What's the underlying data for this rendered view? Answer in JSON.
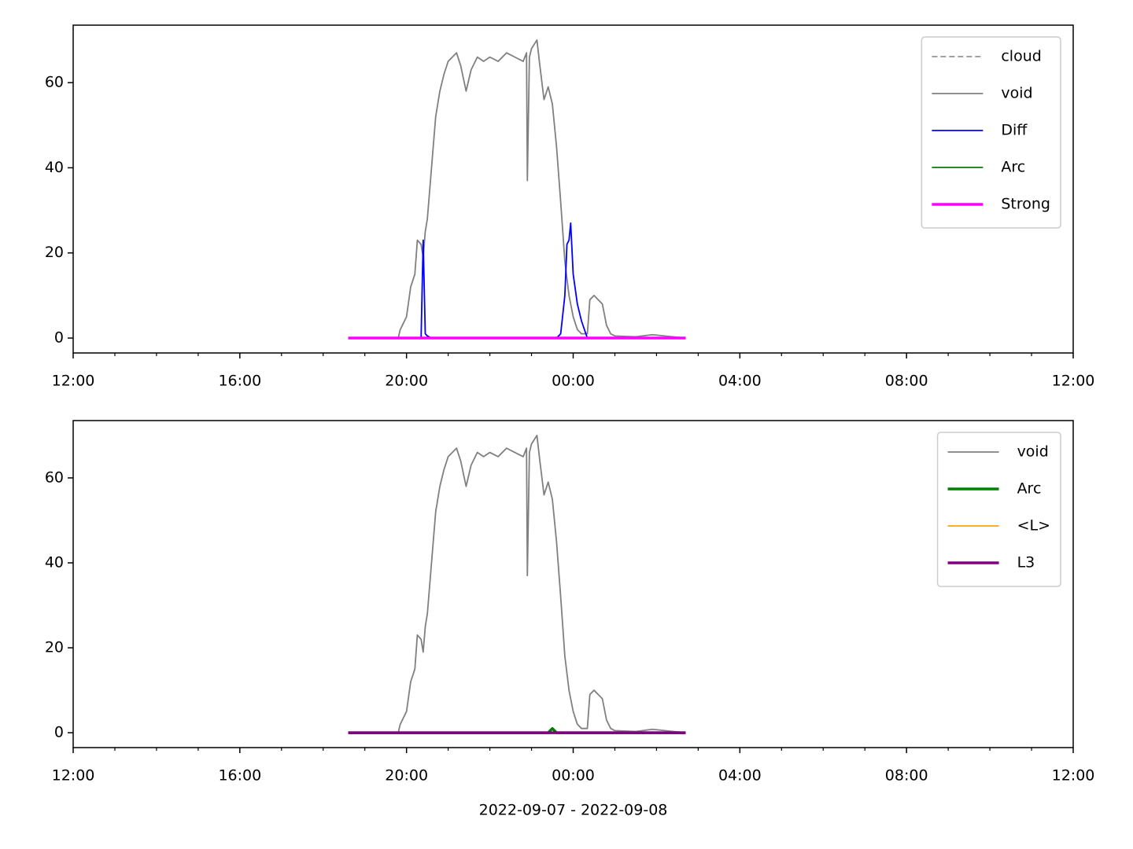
{
  "chart_data": [
    {
      "type": "line",
      "x": [
        18.6,
        19.8,
        19.85,
        19.9,
        20.0,
        20.1,
        20.2,
        20.26,
        20.35,
        20.4,
        20.45,
        20.5,
        20.6,
        20.7,
        20.8,
        20.9,
        21.0,
        21.1,
        21.2,
        21.3,
        21.43,
        21.55,
        21.7,
        21.85,
        22.0,
        22.2,
        22.4,
        22.6,
        22.8,
        22.88,
        22.9,
        22.95,
        23.0,
        23.13,
        23.2,
        23.3,
        23.4,
        23.5,
        23.6,
        23.7,
        23.8,
        23.85,
        23.9,
        23.94,
        24.0,
        24.1,
        24.2,
        24.34,
        24.4,
        24.5,
        24.7,
        24.8,
        24.9,
        25.0,
        25.5,
        25.9,
        26.2,
        26.7
      ],
      "series": [
        {
          "name": "cloud",
          "color": "#808080",
          "dashed": true,
          "linewidth": 1.5,
          "values": [
            0,
            0,
            0,
            0,
            0,
            0,
            0,
            0,
            0,
            0,
            0,
            0,
            0,
            0,
            0,
            0,
            0,
            0,
            0,
            0,
            0,
            0,
            0,
            0,
            0,
            0,
            0,
            0,
            0,
            0,
            0,
            0,
            0,
            0,
            0,
            0,
            0,
            0,
            0,
            0,
            0,
            0,
            0,
            0,
            0,
            0,
            0,
            0,
            0,
            0,
            0,
            0,
            0,
            0,
            0,
            0,
            0,
            0
          ]
        },
        {
          "name": "void",
          "color": "#808080",
          "linewidth": 1.8,
          "values": [
            0,
            0,
            2,
            3,
            5,
            12,
            15,
            23,
            22,
            19,
            25,
            28,
            40,
            52,
            58,
            62,
            65,
            66,
            67,
            64,
            58,
            63,
            66,
            65,
            66,
            65,
            67,
            66,
            65,
            67,
            37,
            66,
            68,
            70,
            64,
            56,
            59,
            55,
            45,
            32,
            18,
            14,
            10,
            8,
            5,
            2,
            1,
            1,
            9,
            10,
            8,
            3,
            1,
            0.5,
            0.3,
            0.8,
            0.5,
            0
          ]
        },
        {
          "name": "Diff",
          "color": "#0000ff",
          "linewidth": 1.8,
          "values": [
            0,
            0,
            0,
            0,
            0,
            0,
            0,
            0,
            0,
            23,
            1,
            0.5,
            0,
            0,
            0,
            0,
            0,
            0,
            0,
            0,
            0,
            0,
            0,
            0,
            0,
            0,
            0,
            0,
            0,
            0,
            0,
            0,
            0,
            0,
            0,
            0,
            0,
            0,
            0,
            1,
            10,
            22,
            23,
            27,
            15,
            8,
            4,
            0,
            0,
            0,
            0,
            0,
            0,
            0,
            0,
            0,
            0,
            0
          ]
        },
        {
          "name": "Arc",
          "color": "#008000",
          "linewidth": 1.8,
          "values": [
            0,
            0,
            0,
            0,
            0,
            0,
            0,
            0,
            0,
            0,
            0,
            0,
            0,
            0,
            0,
            0,
            0,
            0,
            0,
            0,
            0,
            0,
            0,
            0,
            0,
            0,
            0,
            0,
            0,
            0,
            0,
            0,
            0,
            0,
            0,
            0,
            0,
            0,
            0,
            0,
            0,
            0,
            0,
            0,
            0,
            0,
            0,
            0,
            0,
            0,
            0,
            0,
            0,
            0,
            0,
            0,
            0,
            0
          ]
        },
        {
          "name": "Strong",
          "color": "#ff00ff",
          "linewidth": 3.5,
          "values": [
            0,
            0,
            0,
            0,
            0,
            0,
            0,
            0,
            0,
            0,
            0,
            0,
            0,
            0,
            0,
            0,
            0,
            0,
            0,
            0,
            0,
            0,
            0,
            0,
            0,
            0,
            0,
            0,
            0,
            0,
            0,
            0,
            0,
            0,
            0,
            0,
            0,
            0,
            0,
            0,
            0,
            0,
            0,
            0,
            0,
            0,
            0,
            0,
            0,
            0,
            0,
            0,
            0,
            0,
            0,
            0,
            0,
            0
          ]
        }
      ],
      "xlim": [
        12,
        36
      ],
      "xticks": [
        {
          "value": 12,
          "label": "12:00"
        },
        {
          "value": 16,
          "label": "16:00"
        },
        {
          "value": 20,
          "label": "20:00"
        },
        {
          "value": 24,
          "label": "00:00"
        },
        {
          "value": 28,
          "label": "04:00"
        },
        {
          "value": 32,
          "label": "08:00"
        },
        {
          "value": 36,
          "label": "12:00"
        }
      ],
      "xminorticks": [
        13,
        14,
        15,
        17,
        18,
        19,
        21,
        22,
        23,
        25,
        26,
        27,
        29,
        30,
        31,
        33,
        34,
        35
      ],
      "ylim": [
        -3.5,
        73.5
      ],
      "yticks": [
        0,
        20,
        40,
        60
      ],
      "legend": "upper right"
    },
    {
      "type": "line",
      "x": [
        18.6,
        19.8,
        19.85,
        19.9,
        20.0,
        20.1,
        20.2,
        20.26,
        20.35,
        20.4,
        20.45,
        20.5,
        20.6,
        20.7,
        20.8,
        20.9,
        21.0,
        21.1,
        21.2,
        21.3,
        21.43,
        21.55,
        21.7,
        21.85,
        22.0,
        22.2,
        22.4,
        22.6,
        22.8,
        22.88,
        22.9,
        22.95,
        23.0,
        23.13,
        23.2,
        23.3,
        23.4,
        23.5,
        23.6,
        23.7,
        23.8,
        23.85,
        23.9,
        23.94,
        24.0,
        24.1,
        24.2,
        24.34,
        24.4,
        24.5,
        24.7,
        24.8,
        24.9,
        25.0,
        25.5,
        25.9,
        26.2,
        26.7
      ],
      "series": [
        {
          "name": "void",
          "color": "#808080",
          "linewidth": 1.8,
          "values": [
            0,
            0,
            2,
            3,
            5,
            12,
            15,
            23,
            22,
            19,
            25,
            28,
            40,
            52,
            58,
            62,
            65,
            66,
            67,
            64,
            58,
            63,
            66,
            65,
            66,
            65,
            67,
            66,
            65,
            67,
            37,
            66,
            68,
            70,
            64,
            56,
            59,
            55,
            45,
            32,
            18,
            14,
            10,
            8,
            5,
            2,
            1,
            1,
            9,
            10,
            8,
            3,
            1,
            0.5,
            0.3,
            0.8,
            0.5,
            0
          ]
        },
        {
          "name": "Arc",
          "color": "#008000",
          "linewidth": 3.5,
          "values": [
            0,
            0,
            0,
            0,
            0,
            0,
            0,
            0,
            0,
            0,
            0,
            0,
            0,
            0,
            0,
            0,
            0,
            0,
            0,
            0,
            0,
            0,
            0,
            0,
            0,
            0,
            0,
            0,
            0,
            0,
            0,
            0,
            0,
            0,
            0,
            0,
            0,
            1,
            0,
            0,
            0,
            0,
            0,
            0,
            0,
            0,
            0,
            0,
            0,
            0,
            0,
            0,
            0,
            0,
            0,
            0,
            0,
            0
          ]
        },
        {
          "name": "<L>",
          "color": "#ffa500",
          "linewidth": 1.8,
          "values": [
            0,
            0,
            0,
            0,
            0,
            0,
            0,
            0,
            0,
            0,
            0,
            0,
            0,
            0,
            0,
            0,
            0,
            0,
            0,
            0,
            0,
            0,
            0,
            0,
            0,
            0,
            0,
            0,
            0,
            0,
            0,
            0,
            0,
            0,
            0,
            0,
            0,
            0,
            0,
            0,
            0,
            0,
            0,
            0,
            0,
            0,
            0,
            0,
            0,
            0,
            0,
            0,
            0,
            0,
            0,
            0,
            0,
            0
          ]
        },
        {
          "name": "L3",
          "color": "#800080",
          "linewidth": 3.5,
          "values": [
            0,
            0,
            0,
            0,
            0,
            0,
            0,
            0,
            0,
            0,
            0,
            0,
            0,
            0,
            0,
            0,
            0,
            0,
            0,
            0,
            0,
            0,
            0,
            0,
            0,
            0,
            0,
            0,
            0,
            0,
            0,
            0,
            0,
            0,
            0,
            0,
            0,
            0,
            0,
            0,
            0,
            0,
            0,
            0,
            0,
            0,
            0,
            0,
            0,
            0,
            0,
            0,
            0,
            0,
            0,
            0,
            0,
            0
          ]
        }
      ],
      "xlim": [
        12,
        36
      ],
      "xticks": [
        {
          "value": 12,
          "label": "12:00"
        },
        {
          "value": 16,
          "label": "16:00"
        },
        {
          "value": 20,
          "label": "20:00"
        },
        {
          "value": 24,
          "label": "00:00"
        },
        {
          "value": 28,
          "label": "04:00"
        },
        {
          "value": 32,
          "label": "08:00"
        },
        {
          "value": 36,
          "label": "12:00"
        }
      ],
      "xminorticks": [
        13,
        14,
        15,
        17,
        18,
        19,
        21,
        22,
        23,
        25,
        26,
        27,
        29,
        30,
        31,
        33,
        34,
        35
      ],
      "ylim": [
        -3.5,
        73.5
      ],
      "yticks": [
        0,
        20,
        40,
        60
      ],
      "legend": "upper right",
      "xlabel": "2022-09-07 - 2022-09-08"
    }
  ]
}
